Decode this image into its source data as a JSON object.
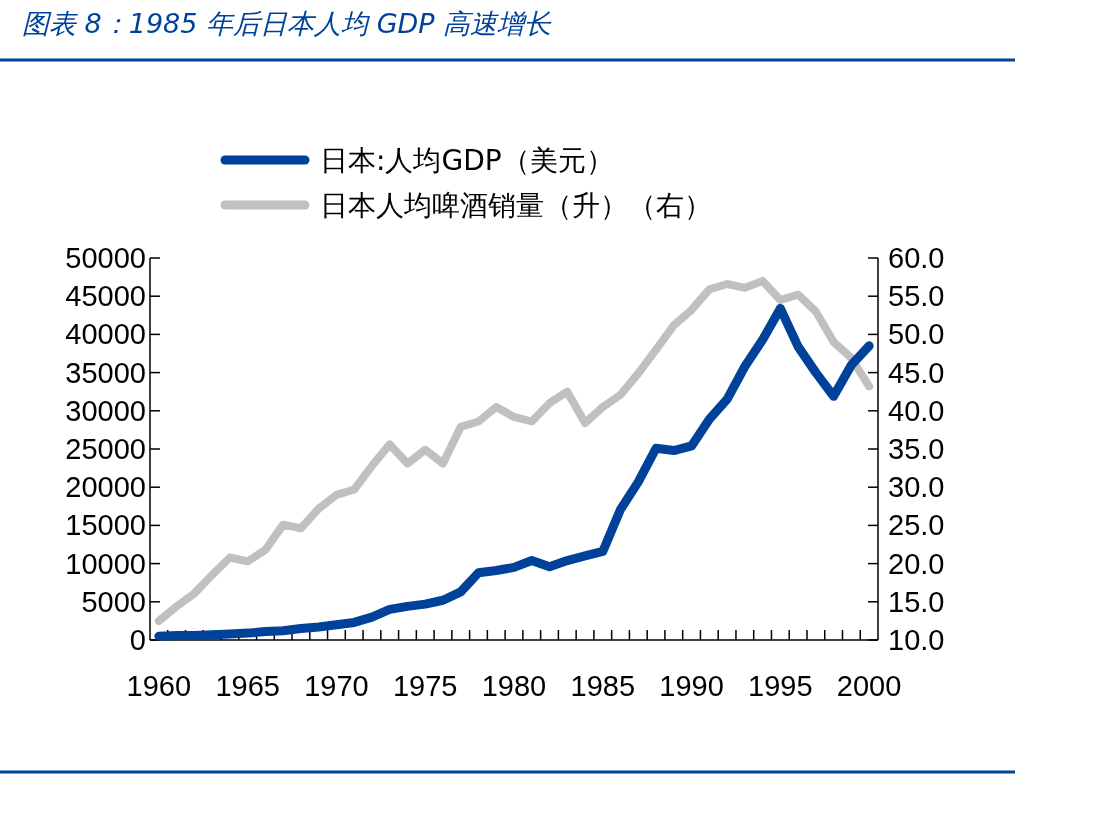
{
  "chart_data": {
    "type": "line",
    "title": "图表 8：1985 年后日本人均 GDP 高速增长",
    "categories": [
      "1960",
      null,
      null,
      null,
      null,
      "1965",
      null,
      null,
      null,
      null,
      "1970",
      null,
      null,
      null,
      null,
      "1975",
      null,
      null,
      null,
      null,
      "1980",
      null,
      null,
      null,
      null,
      "1985",
      null,
      null,
      null,
      null,
      "1990",
      null,
      null,
      null,
      null,
      "1995",
      null,
      null,
      null,
      null,
      "2000"
    ],
    "series": [
      {
        "name": "日本:人均GDP（美元）",
        "color": "#00429a",
        "values": [
          500,
          600,
          600,
          700,
          800,
          900,
          1100,
          1200,
          1500,
          1700,
          2000,
          2300,
          3000,
          4000,
          4400,
          4700,
          5200,
          6300,
          8800,
          9100,
          9500,
          10400,
          9600,
          10400,
          11000,
          11600,
          17100,
          20700,
          25100,
          24800,
          25400,
          28900,
          31500,
          35800,
          39300,
          43400,
          38400,
          35000,
          31900,
          36000,
          38500
        ]
      },
      {
        "name": "日本人均啤酒销量（升）（右）",
        "color": "#c0c0c0",
        "axis": "y2",
        "values": [
          12.5,
          14.4,
          16.1,
          18.5,
          20.8,
          20.3,
          21.8,
          25.1,
          24.6,
          27.2,
          29.0,
          29.7,
          32.8,
          35.6,
          33.1,
          34.9,
          33.1,
          37.9,
          38.6,
          40.5,
          39.2,
          38.6,
          41.0,
          42.5,
          38.4,
          40.5,
          42.1,
          44.9,
          48.0,
          51.2,
          53.2,
          55.9,
          56.6,
          56.1,
          57.0,
          54.5,
          55.2,
          53.0,
          49.0,
          46.9,
          43.2
        ]
      }
    ],
    "ylim": [
      0,
      50000
    ],
    "yticks": [
      0,
      5000,
      10000,
      15000,
      20000,
      25000,
      30000,
      35000,
      40000,
      45000,
      50000
    ],
    "y2lim": [
      10,
      60
    ],
    "y2ticks": [
      {
        "value": 10,
        "label": "10.0"
      },
      {
        "value": 15,
        "label": "15.0"
      },
      {
        "value": 20,
        "label": "20.0"
      },
      {
        "value": 25,
        "label": "25.0"
      },
      {
        "value": 30,
        "label": "30.0"
      },
      {
        "value": 35,
        "label": "35.0"
      },
      {
        "value": 40,
        "label": "40.0"
      },
      {
        "value": 45,
        "label": "45.0"
      },
      {
        "value": 50,
        "label": "50.0"
      },
      {
        "value": 55,
        "label": "55.0"
      },
      {
        "value": 60,
        "label": "60.0"
      }
    ],
    "legend": "top"
  }
}
